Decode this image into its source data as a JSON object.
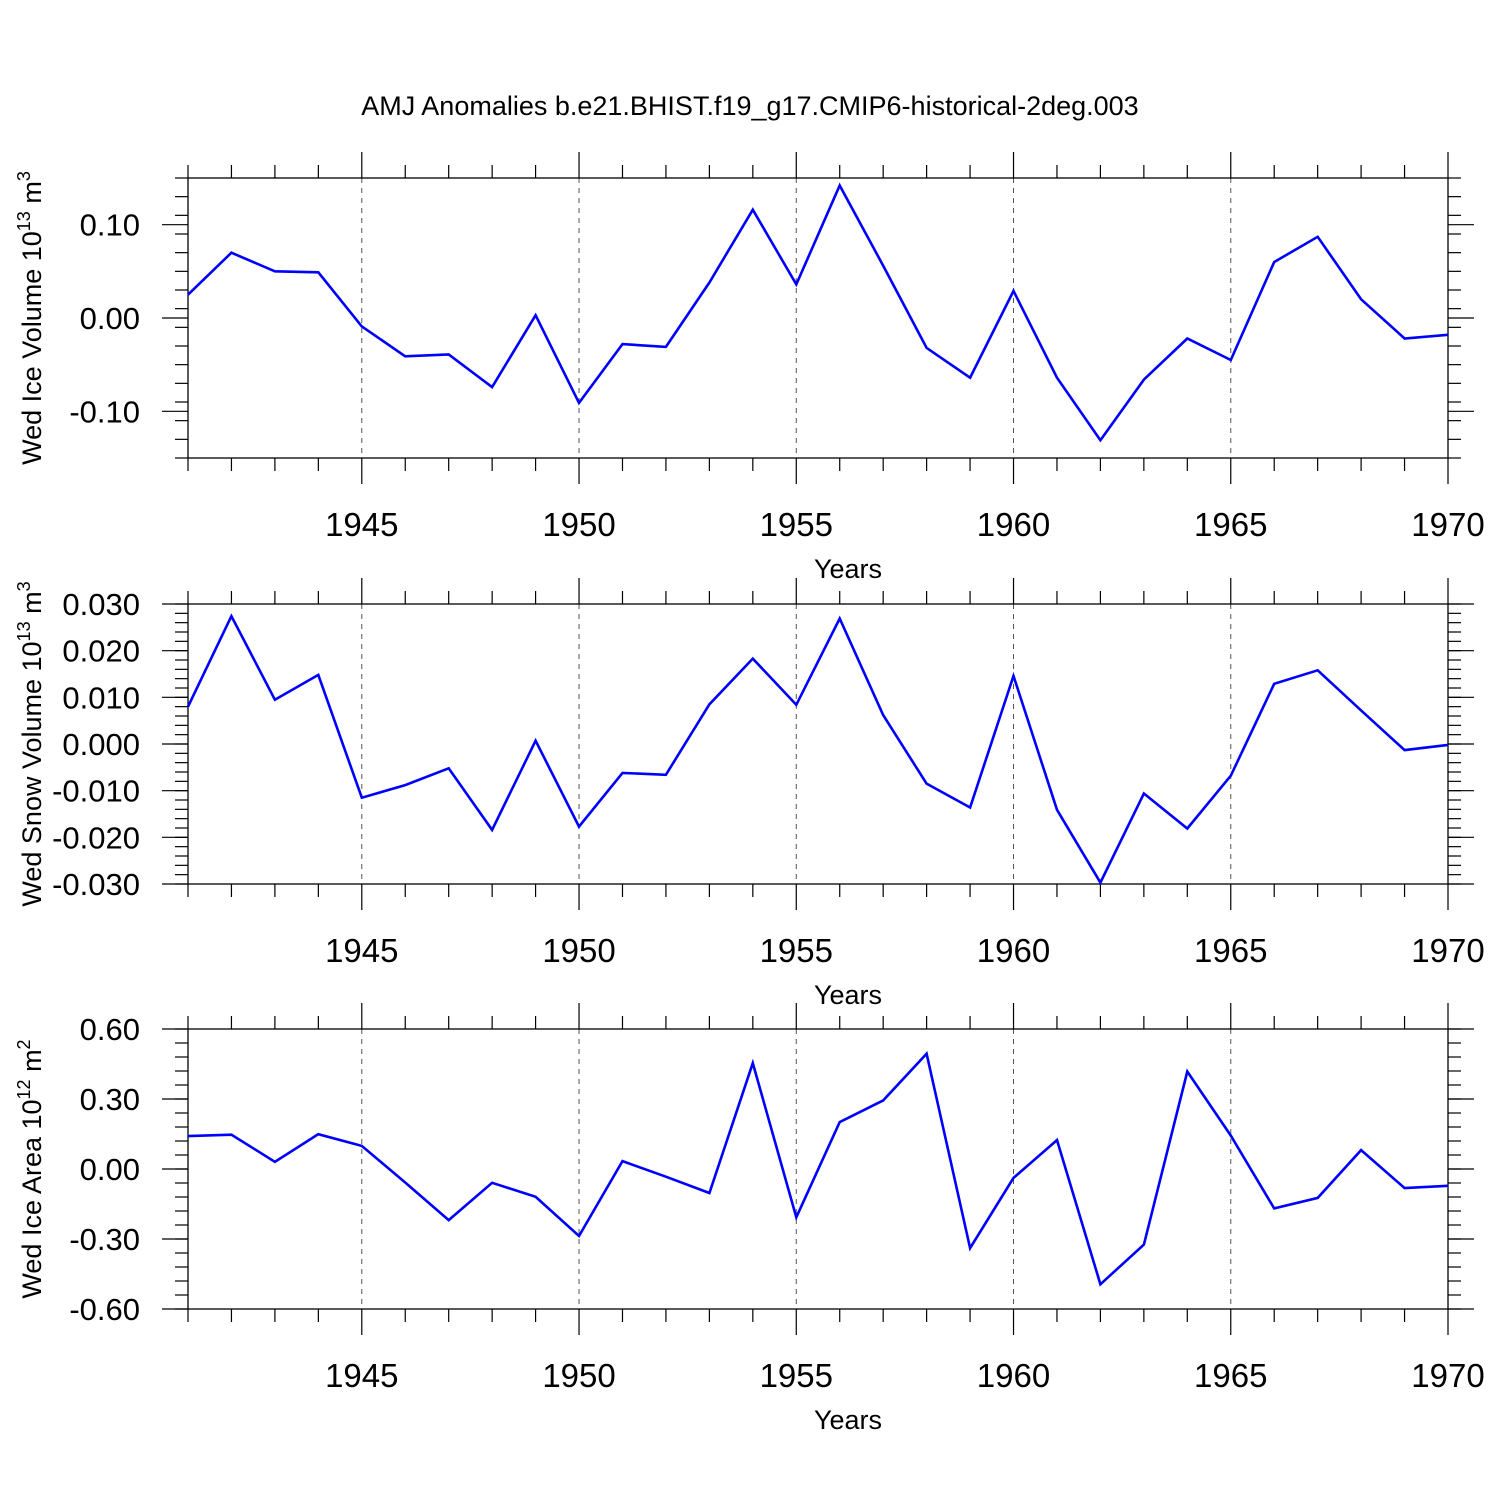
{
  "title": "AMJ Anomalies b.e21.BHIST.f19_g17.CMIP6-historical-2deg.003",
  "line_color": "#0000ff",
  "axis_color": "#000000",
  "grid_color": "#555555",
  "chart_data": [
    {
      "type": "line",
      "ylabel": {
        "main": "Wed Ice Volume 10",
        "sup": "13",
        "unit": " m",
        "unit_sup": "3"
      },
      "xlabel": "Years",
      "xlim": [
        1941,
        1970
      ],
      "ylim": [
        -0.15,
        0.15
      ],
      "x_ticks": [
        "1945",
        "1950",
        "1955",
        "1960",
        "1965",
        "1970"
      ],
      "y_ticks": [
        "0.10",
        "0.00",
        "-0.10"
      ],
      "y_tick_values": [
        0.1,
        0.0,
        -0.1
      ],
      "x": [
        1941,
        1942,
        1943,
        1944,
        1945,
        1946,
        1947,
        1948,
        1949,
        1950,
        1951,
        1952,
        1953,
        1954,
        1955,
        1956,
        1957,
        1958,
        1959,
        1960,
        1961,
        1962,
        1963,
        1964,
        1965,
        1966,
        1967,
        1968,
        1969,
        1970
      ],
      "values": [
        0.025,
        0.07,
        0.05,
        0.049,
        -0.009,
        -0.041,
        -0.039,
        -0.074,
        0.003,
        -0.091,
        -0.028,
        -0.031,
        0.038,
        0.116,
        0.036,
        0.142,
        0.056,
        -0.032,
        -0.064,
        0.029,
        -0.064,
        -0.131,
        -0.066,
        -0.022,
        -0.045,
        0.06,
        0.087,
        0.02,
        -0.022,
        -0.018
      ]
    },
    {
      "type": "line",
      "ylabel": {
        "main": "Wed Snow Volume 10",
        "sup": "13",
        "unit": " m",
        "unit_sup": "3"
      },
      "xlabel": "Years",
      "xlim": [
        1941,
        1970
      ],
      "ylim": [
        -0.03,
        0.03
      ],
      "x_ticks": [
        "1945",
        "1950",
        "1955",
        "1960",
        "1965",
        "1970"
      ],
      "y_ticks": [
        "0.030",
        "0.020",
        "0.010",
        "0.000",
        "-0.010",
        "-0.020",
        "-0.030"
      ],
      "y_tick_values": [
        0.03,
        0.02,
        0.01,
        0.0,
        -0.01,
        -0.02,
        -0.03
      ],
      "x": [
        1941,
        1942,
        1943,
        1944,
        1945,
        1946,
        1947,
        1948,
        1949,
        1950,
        1951,
        1952,
        1953,
        1954,
        1955,
        1956,
        1957,
        1958,
        1959,
        1960,
        1961,
        1962,
        1963,
        1964,
        1965,
        1966,
        1967,
        1968,
        1969,
        1970
      ],
      "values": [
        0.008,
        0.0274,
        0.0095,
        0.0148,
        -0.0115,
        -0.0088,
        -0.0052,
        -0.0184,
        0.0007,
        -0.0177,
        -0.0062,
        -0.0066,
        0.0085,
        0.0183,
        0.0084,
        0.0269,
        0.0062,
        -0.0085,
        -0.0136,
        0.0146,
        -0.0141,
        -0.0297,
        -0.0106,
        -0.0181,
        -0.0068,
        0.0129,
        0.0158,
        0.0072,
        -0.0013,
        -0.0002
      ]
    },
    {
      "type": "line",
      "ylabel": {
        "main": "Wed Ice Area 10",
        "sup": "12",
        "unit": " m",
        "unit_sup": "2"
      },
      "xlabel": "Years",
      "xlim": [
        1941,
        1970
      ],
      "ylim": [
        -0.6,
        0.6
      ],
      "x_ticks": [
        "1945",
        "1950",
        "1955",
        "1960",
        "1965",
        "1970"
      ],
      "y_ticks": [
        "0.60",
        "0.30",
        "0.00",
        "-0.30",
        "-0.60"
      ],
      "y_tick_values": [
        0.6,
        0.3,
        0.0,
        -0.3,
        -0.6
      ],
      "x": [
        1941,
        1942,
        1943,
        1944,
        1945,
        1946,
        1947,
        1948,
        1949,
        1950,
        1951,
        1952,
        1953,
        1954,
        1955,
        1956,
        1957,
        1958,
        1959,
        1960,
        1961,
        1962,
        1963,
        1964,
        1965,
        1966,
        1967,
        1968,
        1969,
        1970
      ],
      "values": [
        0.141,
        0.147,
        0.031,
        0.149,
        0.099,
        -0.058,
        -0.219,
        -0.059,
        -0.119,
        -0.287,
        0.034,
        -0.033,
        -0.103,
        0.454,
        -0.207,
        0.201,
        0.294,
        0.494,
        -0.339,
        -0.038,
        0.124,
        -0.494,
        -0.324,
        0.418,
        0.143,
        -0.169,
        -0.124,
        0.081,
        -0.082,
        -0.072
      ]
    }
  ]
}
